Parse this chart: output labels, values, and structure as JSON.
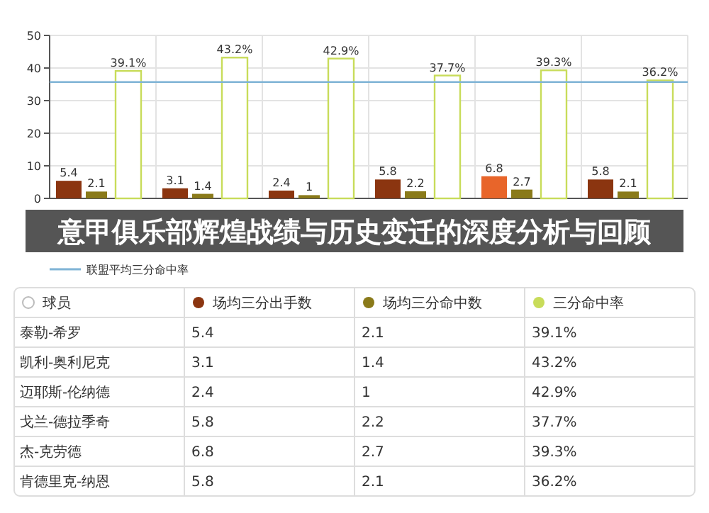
{
  "chart_data": {
    "type": "bar",
    "title": "意甲俱乐部辉煌战绩与历史变迁的深度分析与回顾",
    "annotations": [
      "球员",
      "泰勒-希罗",
      "凯利-奥利尼克",
      "迈耶斯-伦纳德",
      "戈兰-德拉季奇",
      "杰-克劳德",
      "肯德里克-纳恩"
    ],
    "categories": [
      null,
      null,
      null,
      null,
      null,
      null
    ],
    "series": [
      {
        "name": "场均三分出手数",
        "color": "#8b3510",
        "colors": [
          "#8b3510",
          "#8b3510",
          "#8b3510",
          "#8b3510",
          "#e8652a",
          "#8b3510"
        ],
        "values": [
          5.4,
          3.1,
          2.4,
          5.8,
          6.8,
          5.8
        ],
        "value_labels": [
          "5.4",
          "3.1",
          "2.4",
          "5.8",
          "6.8",
          "5.8"
        ]
      },
      {
        "name": "场均三分命中数",
        "color": "#8a7a1a",
        "values": [
          2.1,
          1.4,
          1,
          2.2,
          2.7,
          2.1
        ],
        "value_labels": [
          "2.1",
          "1.4",
          "1",
          "2.2",
          "2.7",
          "2.1"
        ]
      },
      {
        "name": "三分命中率",
        "color": "#c8dc5a",
        "values": [
          39.1,
          43.2,
          42.9,
          37.7,
          39.3,
          36.2
        ],
        "value_labels": [
          "39.1%",
          "43.2%",
          "42.9%",
          "37.7%",
          "39.3%",
          "36.2%"
        ]
      }
    ],
    "ref_lines": [
      {
        "axis": "y",
        "value": 35.7,
        "label": "联盟平均三分命中率",
        "color": "#7fb3d5"
      }
    ],
    "ylim": [
      0,
      50
    ],
    "yticks": [
      0,
      10,
      20,
      30,
      40,
      50
    ],
    "grid": true,
    "legend": "bottom"
  }
}
